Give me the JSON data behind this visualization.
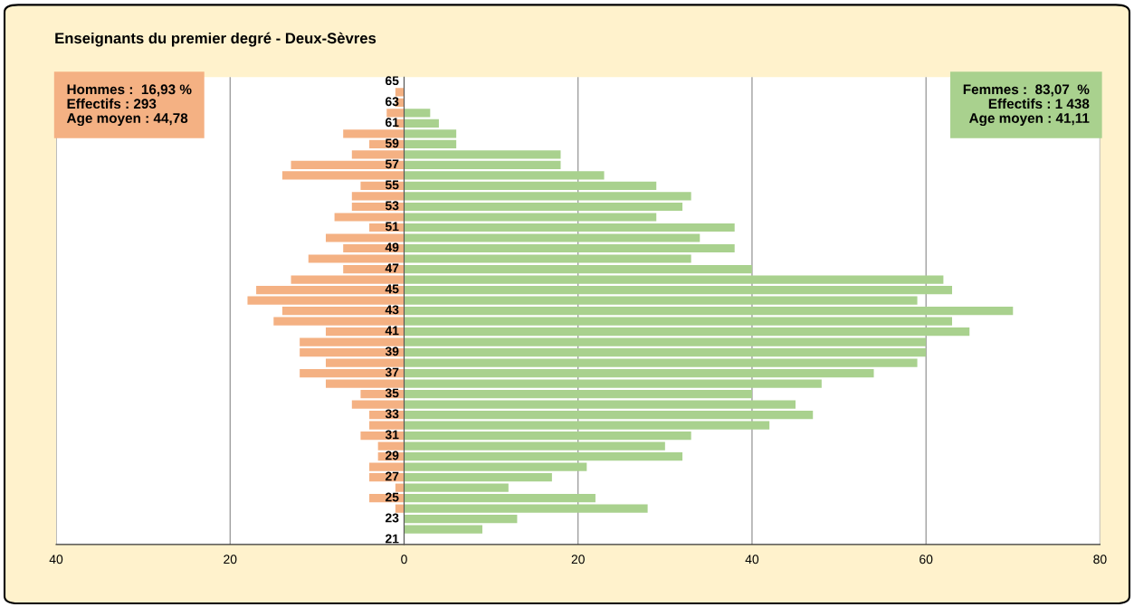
{
  "chart_data": {
    "type": "bar",
    "orientation": "horizontal",
    "stacked": true,
    "title": "Enseignants du premier degré - Deux-Sèvres",
    "categories": [
      "65",
      null,
      "63",
      null,
      "61",
      null,
      "59",
      null,
      "57",
      null,
      "55",
      null,
      "53",
      null,
      "51",
      null,
      "49",
      null,
      "47",
      null,
      "45",
      null,
      "43",
      null,
      "41",
      null,
      "39",
      null,
      "37",
      null,
      "35",
      null,
      "33",
      null,
      "31",
      null,
      "29",
      null,
      "27",
      null,
      "25",
      null,
      "23",
      null,
      "21"
    ],
    "series": [
      {
        "color": "#f4b183",
        "values": [
          0,
          -1,
          -1,
          -2,
          -1,
          -7,
          -4,
          -6,
          -13,
          -14,
          -5,
          -6,
          -6,
          -8,
          -4,
          -9,
          -7,
          -11,
          -7,
          -13,
          -17,
          -18,
          -14,
          -15,
          -9,
          -12,
          -12,
          -9,
          -12,
          -9,
          -5,
          -6,
          -4,
          -4,
          -5,
          -3,
          -3,
          -4,
          -4,
          -1,
          -4,
          -1,
          0,
          0,
          0
        ]
      },
      {
        "color": "#a9d18e",
        "values": [
          0,
          0,
          0,
          3,
          4,
          6,
          6,
          18,
          18,
          23,
          29,
          33,
          32,
          29,
          38,
          34,
          38,
          33,
          40,
          62,
          63,
          59,
          70,
          63,
          65,
          60,
          60,
          59,
          54,
          48,
          40,
          45,
          47,
          42,
          33,
          30,
          32,
          21,
          17,
          12,
          22,
          28,
          13,
          9,
          0
        ]
      }
    ],
    "xlim": [
      -40,
      80
    ],
    "xticks": [
      {
        "value": -40,
        "label": "40"
      },
      {
        "value": -20,
        "label": "20"
      },
      0,
      20,
      40,
      60,
      80
    ],
    "grid": "x",
    "annotations": [
      "Hommes :  16,93 %\nEffectifs : 293\nAge moyen : 44,78",
      "Femmes :  83,07  %\nEffectifs : 1 438\nAge moyen : 41,11"
    ]
  }
}
